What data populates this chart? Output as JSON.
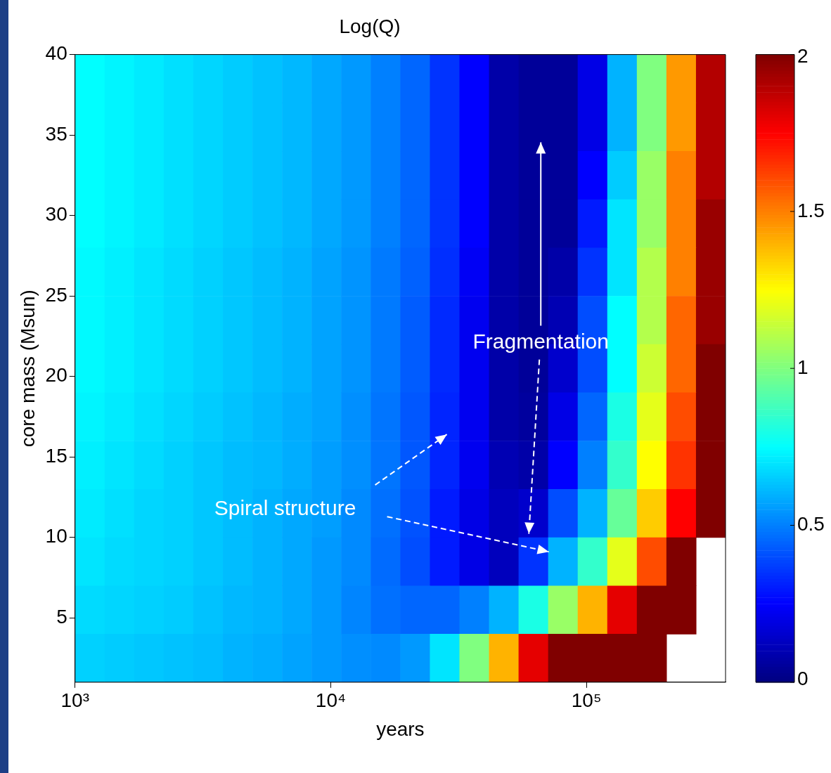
{
  "chart_data": {
    "type": "heatmap",
    "title": "Log(Q)",
    "xlabel": "years",
    "ylabel": "core mass (Msun)",
    "log": "x",
    "xlim": [
      1000,
      350000
    ],
    "xticks": [
      {
        "value": 1000,
        "label": "10³"
      },
      {
        "value": 10000,
        "label": "10⁴"
      },
      {
        "value": 100000,
        "label": "10⁵"
      }
    ],
    "ylim": [
      1,
      40
    ],
    "yticks": [
      5,
      10,
      15,
      20,
      25,
      30,
      35,
      40
    ],
    "clim": [
      0,
      2
    ],
    "cticks": [
      0,
      0.5,
      1,
      1.5,
      2
    ],
    "cells": [
      [
        0.75,
        0.73,
        0.71,
        0.69,
        0.67,
        0.65,
        0.63,
        0.61,
        0.58,
        0.55,
        0.5,
        0.45,
        0.35,
        0.25,
        0.08,
        0.05,
        0.05,
        0.2,
        0.6,
        1.0,
        1.45,
        1.9
      ],
      [
        0.75,
        0.73,
        0.71,
        0.69,
        0.67,
        0.65,
        0.63,
        0.61,
        0.58,
        0.55,
        0.5,
        0.45,
        0.35,
        0.25,
        0.08,
        0.05,
        0.05,
        0.2,
        0.6,
        1.0,
        1.45,
        1.9
      ],
      [
        0.75,
        0.73,
        0.71,
        0.69,
        0.67,
        0.65,
        0.63,
        0.61,
        0.58,
        0.55,
        0.5,
        0.45,
        0.35,
        0.25,
        0.08,
        0.05,
        0.05,
        0.25,
        0.65,
        1.05,
        1.5,
        1.9
      ],
      [
        0.75,
        0.73,
        0.71,
        0.69,
        0.67,
        0.65,
        0.63,
        0.61,
        0.58,
        0.55,
        0.5,
        0.45,
        0.35,
        0.25,
        0.08,
        0.05,
        0.05,
        0.3,
        0.7,
        1.05,
        1.5,
        1.95
      ],
      [
        0.74,
        0.72,
        0.7,
        0.68,
        0.66,
        0.64,
        0.62,
        0.6,
        0.57,
        0.54,
        0.49,
        0.44,
        0.34,
        0.23,
        0.08,
        0.05,
        0.08,
        0.35,
        0.7,
        1.1,
        1.5,
        1.95
      ],
      [
        0.74,
        0.72,
        0.7,
        0.68,
        0.66,
        0.64,
        0.62,
        0.6,
        0.57,
        0.54,
        0.49,
        0.43,
        0.33,
        0.22,
        0.08,
        0.05,
        0.1,
        0.4,
        0.75,
        1.1,
        1.55,
        1.95
      ],
      [
        0.74,
        0.72,
        0.7,
        0.68,
        0.66,
        0.64,
        0.62,
        0.6,
        0.57,
        0.54,
        0.49,
        0.43,
        0.33,
        0.22,
        0.08,
        0.05,
        0.15,
        0.4,
        0.75,
        1.15,
        1.55,
        2
      ],
      [
        0.73,
        0.71,
        0.69,
        0.67,
        0.65,
        0.63,
        0.61,
        0.59,
        0.57,
        0.53,
        0.48,
        0.42,
        0.32,
        0.22,
        0.08,
        0.06,
        0.2,
        0.45,
        0.8,
        1.2,
        1.6,
        2
      ],
      [
        0.72,
        0.7,
        0.68,
        0.66,
        0.64,
        0.62,
        0.61,
        0.59,
        0.56,
        0.53,
        0.48,
        0.42,
        0.32,
        0.22,
        0.1,
        0.08,
        0.25,
        0.5,
        0.85,
        1.25,
        1.65,
        2
      ],
      [
        0.71,
        0.69,
        0.67,
        0.66,
        0.64,
        0.62,
        0.6,
        0.58,
        0.56,
        0.52,
        0.47,
        0.41,
        0.3,
        0.2,
        0.12,
        0.15,
        0.4,
        0.6,
        0.95,
        1.35,
        1.75,
        2
      ],
      [
        0.7,
        0.68,
        0.67,
        0.66,
        0.64,
        0.62,
        0.6,
        0.58,
        0.55,
        0.52,
        0.46,
        0.4,
        0.3,
        0.2,
        0.12,
        0.35,
        0.6,
        0.85,
        1.2,
        1.6,
        2,
        null
      ],
      [
        0.68,
        0.67,
        0.66,
        0.65,
        0.63,
        0.61,
        0.6,
        0.58,
        0.55,
        0.51,
        0.47,
        0.45,
        0.45,
        0.5,
        0.6,
        0.8,
        1.05,
        1.4,
        1.8,
        2,
        2,
        null
      ],
      [
        0.66,
        0.65,
        0.64,
        0.63,
        0.62,
        0.6,
        0.59,
        0.57,
        0.55,
        0.53,
        0.52,
        0.55,
        0.7,
        1.0,
        1.4,
        1.8,
        2,
        2,
        2,
        2,
        null,
        null
      ]
    ],
    "annotations": [
      "Fragmentation",
      "Spiral structure"
    ]
  }
}
